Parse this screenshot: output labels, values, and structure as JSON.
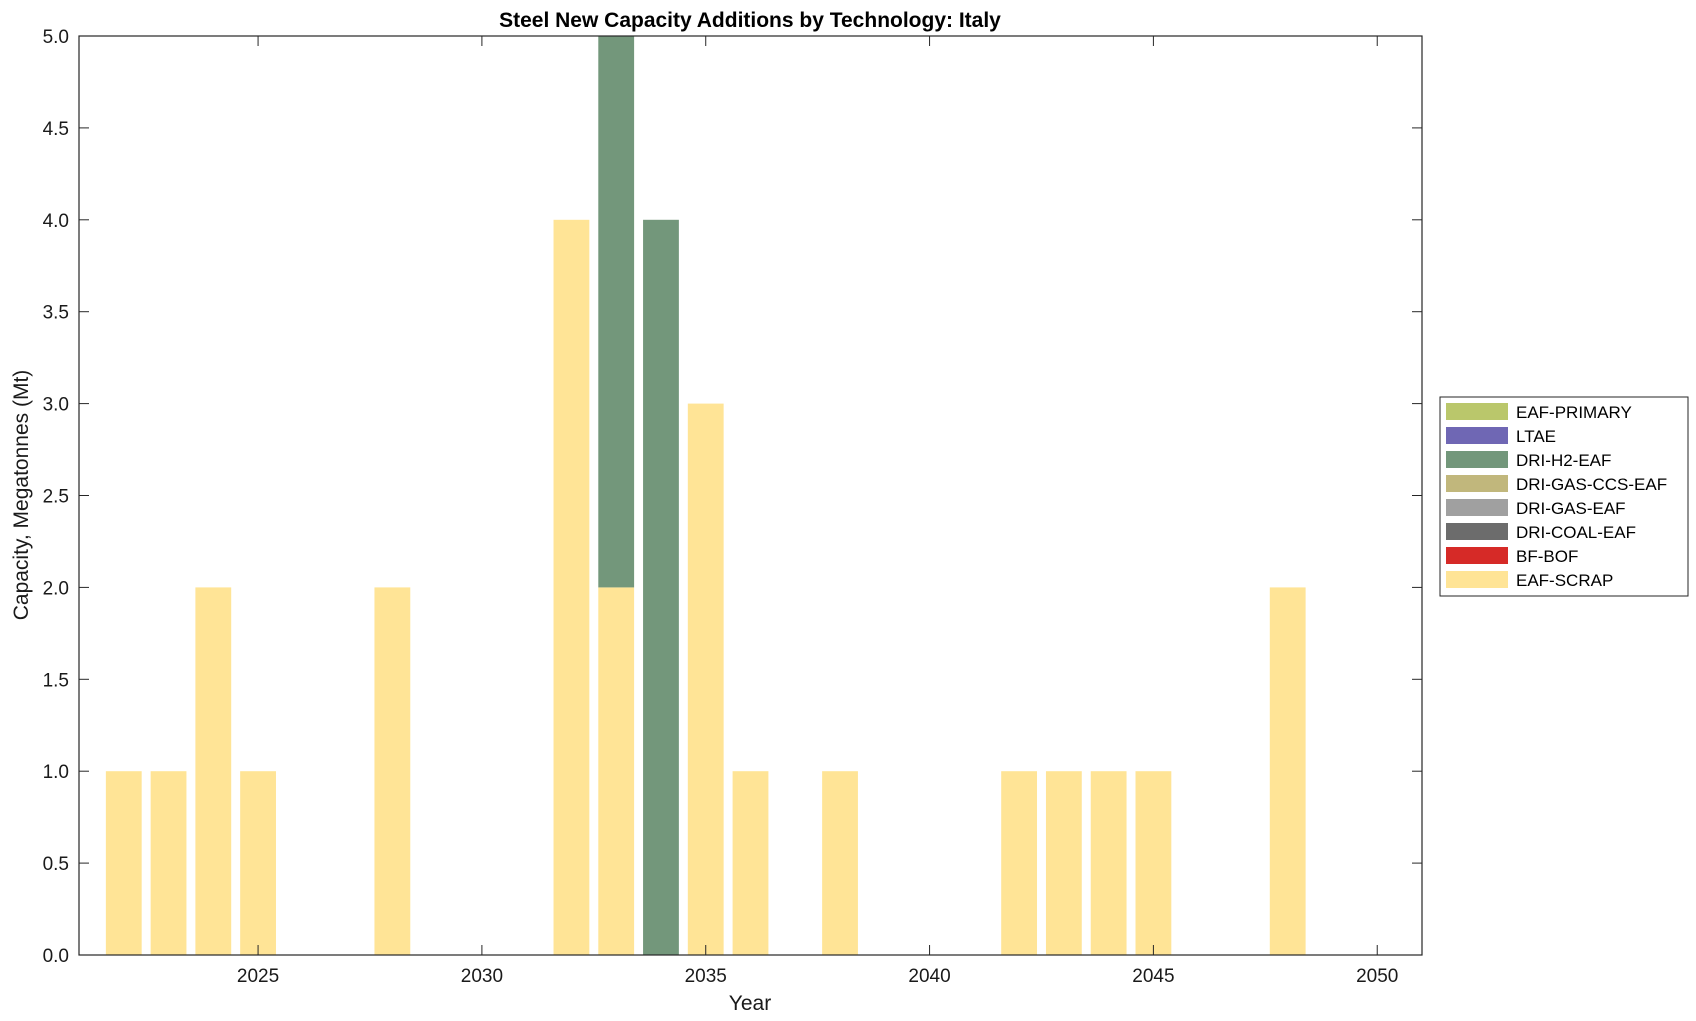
{
  "chart_data": {
    "type": "bar",
    "stacked": true,
    "title": "Steel New Capacity Additions by Technology: Italy",
    "xlabel": "Year",
    "ylabel": "Capacity, Megatonnes (Mt)",
    "xlim": [
      2021,
      2051
    ],
    "ylim": [
      0,
      5
    ],
    "xticks": [
      2025,
      2030,
      2035,
      2040,
      2045,
      2050
    ],
    "yticks": [
      0,
      0.5,
      1,
      1.5,
      2,
      2.5,
      3,
      3.5,
      4,
      4.5,
      5
    ],
    "ytick_labels": [
      "0.0",
      "0.5",
      "1.0",
      "1.5",
      "2.0",
      "2.5",
      "3.0",
      "3.5",
      "4.0",
      "4.5",
      "5.0"
    ],
    "grid": false,
    "legend_position": "outside-right",
    "categories": [
      2022,
      2023,
      2024,
      2025,
      2026,
      2027,
      2028,
      2029,
      2030,
      2031,
      2032,
      2033,
      2034,
      2035,
      2036,
      2037,
      2038,
      2039,
      2040,
      2041,
      2042,
      2043,
      2044,
      2045,
      2046,
      2047,
      2048,
      2049,
      2050
    ],
    "series": [
      {
        "name": "EAF-SCRAP",
        "color": "#FFE496",
        "values": [
          1,
          1,
          2,
          1,
          0,
          0,
          2,
          0,
          0,
          0,
          4,
          2,
          0,
          3,
          1,
          0,
          1,
          0,
          0,
          0,
          1,
          1,
          1,
          1,
          0,
          0,
          2,
          0,
          0
        ]
      },
      {
        "name": "BF-BOF",
        "color": "#D62A27",
        "values": [
          0,
          0,
          0,
          0,
          0,
          0,
          0,
          0,
          0,
          0,
          0,
          0,
          0,
          0,
          0,
          0,
          0,
          0,
          0,
          0,
          0,
          0,
          0,
          0,
          0,
          0,
          0,
          0,
          0
        ]
      },
      {
        "name": "DRI-COAL-EAF",
        "color": "#6C6C6C",
        "values": [
          0,
          0,
          0,
          0,
          0,
          0,
          0,
          0,
          0,
          0,
          0,
          0,
          0,
          0,
          0,
          0,
          0,
          0,
          0,
          0,
          0,
          0,
          0,
          0,
          0,
          0,
          0,
          0,
          0
        ]
      },
      {
        "name": "DRI-GAS-EAF",
        "color": "#A0A0A0",
        "values": [
          0,
          0,
          0,
          0,
          0,
          0,
          0,
          0,
          0,
          0,
          0,
          0,
          0,
          0,
          0,
          0,
          0,
          0,
          0,
          0,
          0,
          0,
          0,
          0,
          0,
          0,
          0,
          0,
          0
        ]
      },
      {
        "name": "DRI-GAS-CCS-EAF",
        "color": "#C1B77C",
        "values": [
          0,
          0,
          0,
          0,
          0,
          0,
          0,
          0,
          0,
          0,
          0,
          0,
          0,
          0,
          0,
          0,
          0,
          0,
          0,
          0,
          0,
          0,
          0,
          0,
          0,
          0,
          0,
          0,
          0
        ]
      },
      {
        "name": "DRI-H2-EAF",
        "color": "#73977B",
        "values": [
          0,
          0,
          0,
          0,
          0,
          0,
          0,
          0,
          0,
          0,
          0,
          3,
          4,
          0,
          0,
          0,
          0,
          0,
          0,
          0,
          0,
          0,
          0,
          0,
          0,
          0,
          0,
          0,
          0
        ]
      },
      {
        "name": "LTAE",
        "color": "#6F67B4",
        "values": [
          0,
          0,
          0,
          0,
          0,
          0,
          0,
          0,
          0,
          0,
          0,
          0,
          0,
          0,
          0,
          0,
          0,
          0,
          0,
          0,
          0,
          0,
          0,
          0,
          0,
          0,
          0,
          0,
          0
        ]
      },
      {
        "name": "EAF-PRIMARY",
        "color": "#BAC76B",
        "values": [
          0,
          0,
          0,
          0,
          0,
          0,
          0,
          0,
          0,
          0,
          0,
          0,
          0,
          0,
          0,
          0,
          0,
          0,
          0,
          0,
          0,
          0,
          0,
          0,
          0,
          0,
          0,
          0,
          0
        ]
      }
    ],
    "legend_order": [
      "EAF-PRIMARY",
      "LTAE",
      "DRI-H2-EAF",
      "DRI-GAS-CCS-EAF",
      "DRI-GAS-EAF",
      "DRI-COAL-EAF",
      "BF-BOF",
      "EAF-SCRAP"
    ]
  }
}
